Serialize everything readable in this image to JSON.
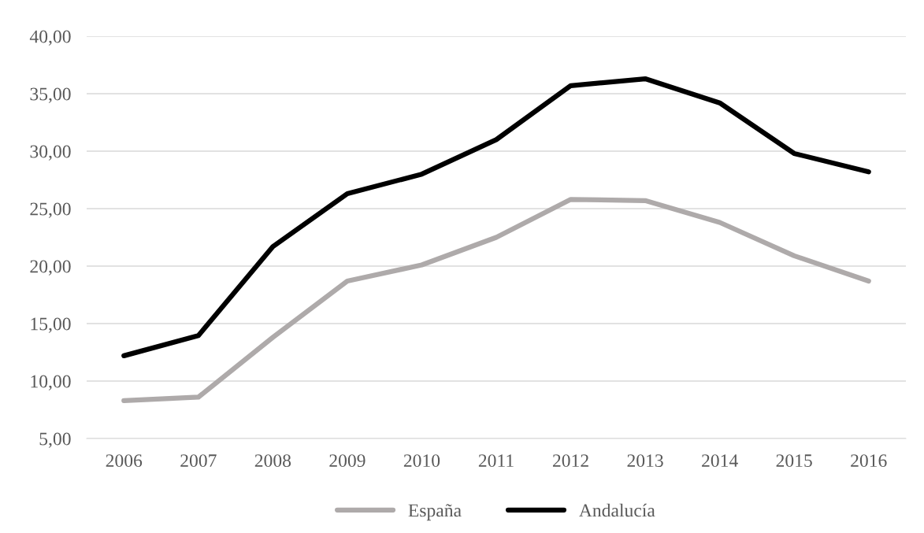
{
  "chart_data": {
    "type": "line",
    "categories": [
      "2006",
      "2007",
      "2008",
      "2009",
      "2010",
      "2011",
      "2012",
      "2013",
      "2014",
      "2015",
      "2016"
    ],
    "series": [
      {
        "name": "España",
        "color": "#aeaaaa",
        "values": [
          8.3,
          8.6,
          13.8,
          18.7,
          20.1,
          22.5,
          25.8,
          25.7,
          23.8,
          20.9,
          18.7
        ]
      },
      {
        "name": "Andalucía",
        "color": "#000000",
        "values": [
          12.2,
          13.95,
          21.7,
          26.3,
          28.0,
          31.0,
          35.7,
          36.3,
          34.2,
          29.8,
          28.2
        ]
      }
    ],
    "ylim": [
      5,
      40
    ],
    "yticks": [
      {
        "value": 5,
        "label": "5,00"
      },
      {
        "value": 10,
        "label": "10,00"
      },
      {
        "value": 15,
        "label": "15,00"
      },
      {
        "value": 20,
        "label": "20,00"
      },
      {
        "value": 25,
        "label": "25,00"
      },
      {
        "value": 30,
        "label": "30,00"
      },
      {
        "value": 35,
        "label": "35,00"
      },
      {
        "value": 40,
        "label": "40,00"
      }
    ],
    "grid": "y",
    "legend": "bottom",
    "marker": "none",
    "line_style": "solid"
  }
}
